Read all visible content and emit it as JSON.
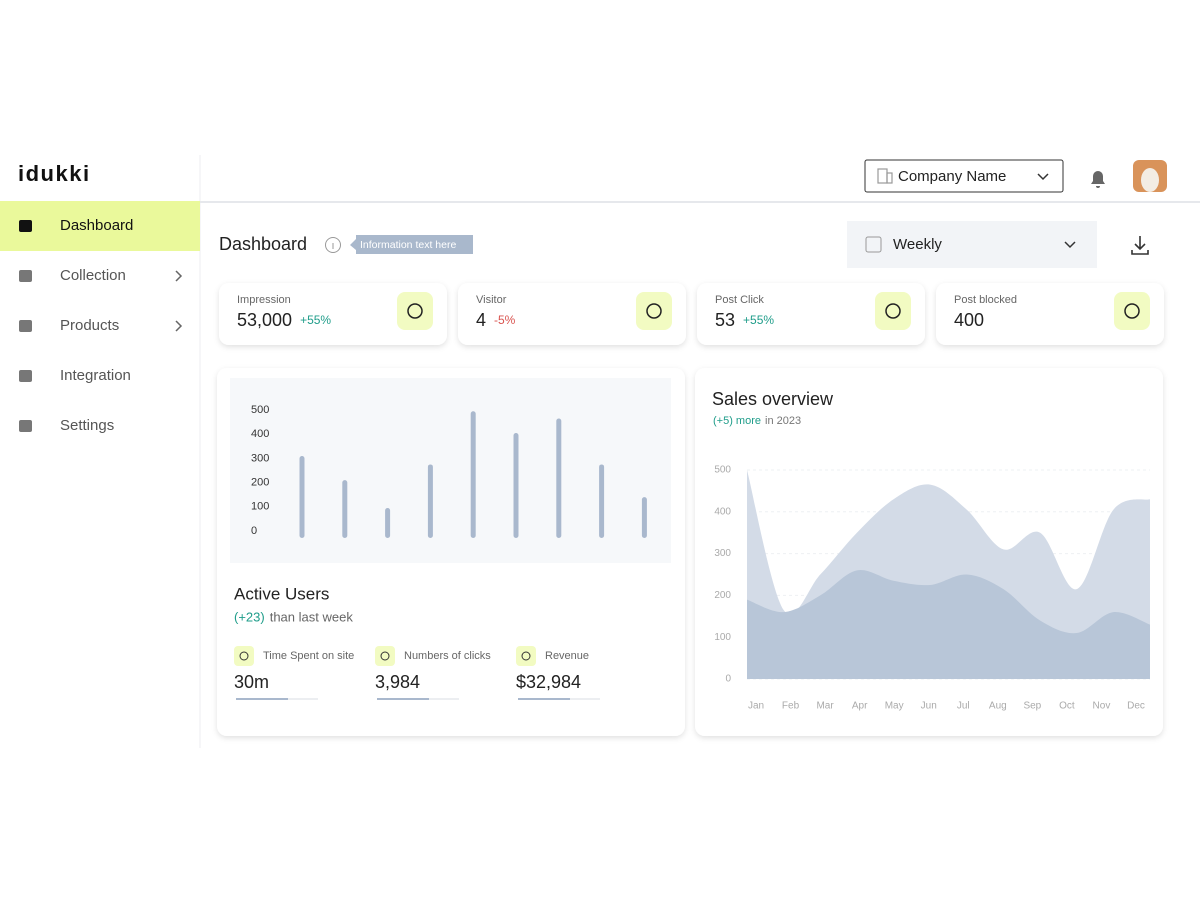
{
  "brand": "idukki",
  "header": {
    "company": "Company Name"
  },
  "nav": [
    {
      "label": "Dashboard",
      "active": true,
      "submenu": false
    },
    {
      "label": "Collection",
      "active": false,
      "submenu": true
    },
    {
      "label": "Products",
      "active": false,
      "submenu": true
    },
    {
      "label": "Integration",
      "active": false,
      "submenu": false
    },
    {
      "label": "Settings",
      "active": false,
      "submenu": false
    }
  ],
  "page": {
    "title": "Dashboard",
    "info": "Information text here",
    "period": "Weekly"
  },
  "stats": [
    {
      "label": "Impression",
      "value": "53,000",
      "change": "+55%",
      "trend": "up"
    },
    {
      "label": "Visitor",
      "value": "4",
      "change": "-5%",
      "trend": "down"
    },
    {
      "label": "Post Click",
      "value": "53",
      "change": "+55%",
      "trend": "up"
    },
    {
      "label": "Post blocked",
      "value": "400"
    }
  ],
  "metrics": [
    {
      "label": "Time Spent on site",
      "value": "30m"
    },
    {
      "label": "Numbers of clicks",
      "value": "3,984"
    },
    {
      "label": "Revenue",
      "value": "$32,984"
    }
  ],
  "chart_data": [
    {
      "type": "bar",
      "title": "Active Users",
      "subtitle_highlight": "(+23)",
      "subtitle": "than last week",
      "categories": [
        null,
        null,
        null,
        null,
        null,
        null,
        null,
        null,
        null
      ],
      "values": [
        310,
        210,
        95,
        275,
        495,
        405,
        465,
        275,
        140
      ],
      "color": "#a9b8cd",
      "ylim": [
        0,
        500
      ],
      "yticks": [
        0,
        100,
        200,
        300,
        400,
        500
      ]
    },
    {
      "type": "area",
      "title": "Sales overview",
      "subtitle_highlight": "(+5) more",
      "subtitle": "in 2023",
      "categories": [
        "Jan",
        "Feb",
        "Mar",
        "Apr",
        "May",
        "Jun",
        "Jul",
        "Aug",
        "Sep",
        "Oct",
        "Nov",
        "Dec"
      ],
      "series": [
        {
          "color": "#d3dbe7",
          "values": [
            500,
            165,
            250,
            350,
            430,
            465,
            405,
            310,
            350,
            215,
            405,
            430
          ]
        },
        {
          "color": "#b8c6d8",
          "values": [
            190,
            160,
            200,
            260,
            235,
            225,
            250,
            215,
            140,
            110,
            160,
            130
          ]
        }
      ],
      "ylim": [
        0,
        500
      ],
      "yticks": [
        0,
        100,
        200,
        300,
        400,
        500
      ],
      "grid": true
    }
  ]
}
